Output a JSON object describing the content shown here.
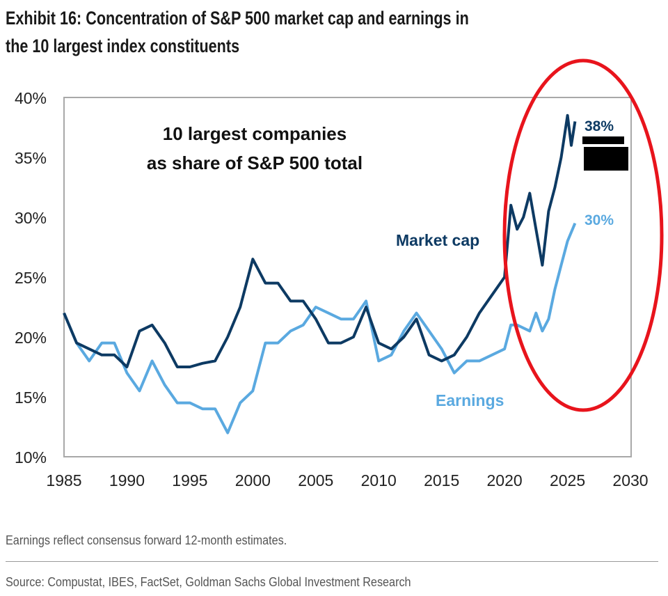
{
  "title_line1": "Exhibit 16: Concentration of S&P 500 market cap and earnings in",
  "title_line2": "the 10 largest index constituents",
  "footnote": "Earnings reflect consensus forward 12-month estimates.",
  "source": "Source: Compustat, IBES, FactSet, Goldman Sachs Global Investment Research",
  "chart_data": {
    "type": "line",
    "title": "10 largest companies as share of S&P 500 total",
    "subtitle_line1": "10 largest companies",
    "subtitle_line2": "as share of S&P 500 total",
    "xlabel": "",
    "ylabel": "",
    "xlim": [
      1985,
      2030
    ],
    "ylim": [
      10,
      40
    ],
    "x_ticks": [
      "1985",
      "1990",
      "1995",
      "2000",
      "2005",
      "2010",
      "2015",
      "2020",
      "2025",
      "2030"
    ],
    "y_ticks": [
      "10%",
      "15%",
      "20%",
      "25%",
      "30%",
      "35%",
      "40%"
    ],
    "grid": false,
    "series": [
      {
        "name": "Market cap",
        "color": "#0d3a63",
        "end_label": "38%",
        "x": [
          1985,
          1986,
          1987,
          1988,
          1989,
          1990,
          1991,
          1992,
          1993,
          1994,
          1995,
          1996,
          1997,
          1998,
          1999,
          2000,
          2001,
          2002,
          2003,
          2004,
          2005,
          2006,
          2007,
          2008,
          2009,
          2010,
          2011,
          2012,
          2013,
          2014,
          2015,
          2016,
          2017,
          2018,
          2019,
          2020,
          2020.5,
          2021,
          2021.5,
          2022,
          2022.5,
          2023,
          2023.5,
          2024,
          2024.5,
          2025,
          2025.3,
          2025.6
        ],
        "y": [
          22,
          19.5,
          19,
          18.5,
          18.5,
          17.5,
          20.5,
          21,
          19.5,
          17.5,
          17.5,
          17.8,
          18,
          20,
          22.5,
          26.5,
          24.5,
          24.5,
          23,
          23,
          21.5,
          19.5,
          19.5,
          20,
          22.5,
          19.5,
          19,
          20,
          21.5,
          18.5,
          18,
          18.5,
          20,
          22,
          23.5,
          25,
          31,
          29,
          30,
          32,
          29,
          26,
          30.5,
          32.5,
          35,
          38.5,
          36,
          38
        ]
      },
      {
        "name": "Earnings",
        "color": "#5aa9e0",
        "end_label": "30%",
        "x": [
          1985,
          1986,
          1987,
          1988,
          1989,
          1990,
          1991,
          1992,
          1993,
          1994,
          1995,
          1996,
          1997,
          1998,
          1999,
          2000,
          2001,
          2002,
          2003,
          2004,
          2005,
          2006,
          2007,
          2008,
          2009,
          2010,
          2011,
          2012,
          2013,
          2014,
          2015,
          2016,
          2017,
          2018,
          2019,
          2020,
          2020.5,
          2021,
          2022,
          2022.5,
          2023,
          2023.5,
          2024,
          2024.5,
          2025,
          2025.6
        ],
        "y": [
          22,
          19.5,
          18,
          19.5,
          19.5,
          17,
          15.5,
          18,
          16,
          14.5,
          14.5,
          14,
          14,
          12,
          14.5,
          15.5,
          19.5,
          19.5,
          20.5,
          21,
          22.5,
          22,
          21.5,
          21.5,
          23,
          18,
          18.5,
          20.5,
          22,
          20.5,
          19,
          17,
          18,
          18,
          18.5,
          19,
          21,
          21,
          20.5,
          22,
          20.5,
          21.5,
          24,
          26,
          28,
          29.5
        ]
      }
    ],
    "annotations": [
      "Market cap",
      "Earnings",
      "38%",
      "30%"
    ],
    "highlight_color": "#e8141c"
  }
}
